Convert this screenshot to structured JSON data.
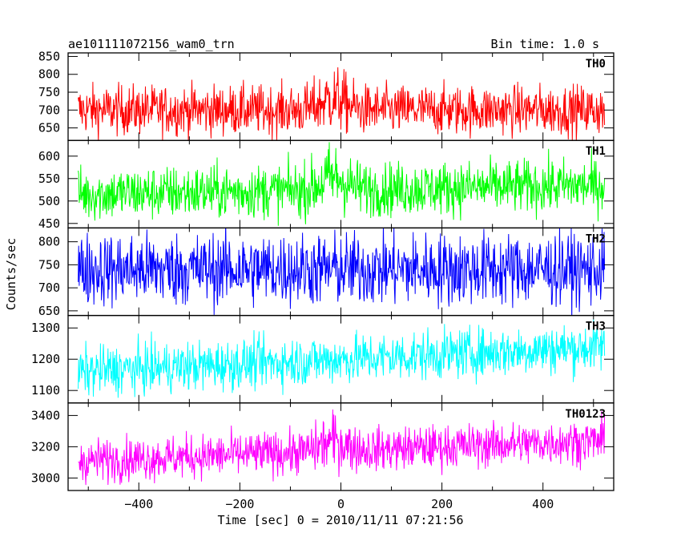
{
  "header": {
    "title": "ae101111072156_wam0_trn",
    "bin_time": "Bin time: 1.0 s"
  },
  "chart_data": {
    "type": "line",
    "xlabel": "Time [sec] 0 = 2010/11/11 07:21:56",
    "ylabel": "Counts/sec",
    "xlim": [
      -540,
      540
    ],
    "x_data_range": [
      -520,
      522
    ],
    "bin_seconds": 1.0,
    "x_ticks": [
      -400,
      -200,
      0,
      200,
      400
    ],
    "x_tick_labels": [
      "−400",
      "−200",
      "0",
      "200",
      "400"
    ],
    "panels": [
      {
        "label": "TH0",
        "color": "#ff0000",
        "ylim": [
          615,
          860
        ],
        "y_ticks": [
          650,
          700,
          750,
          800,
          850
        ],
        "y_tick_labels": [
          "650",
          "700",
          "750",
          "800",
          "850"
        ],
        "approx_mean": 700,
        "approx_noise_amplitude": 35,
        "burst_near_t0": true
      },
      {
        "label": "TH1",
        "color": "#00ff00",
        "ylim": [
          440,
          635
        ],
        "y_ticks": [
          450,
          500,
          550,
          600
        ],
        "y_tick_labels": [
          "450",
          "500",
          "550",
          "600"
        ],
        "approx_mean": 515,
        "approx_mean_end": 535,
        "approx_noise_amplitude": 30,
        "burst_near_t0": true
      },
      {
        "label": "TH2",
        "color": "#0000ff",
        "ylim": [
          640,
          830
        ],
        "y_ticks": [
          650,
          700,
          750,
          800
        ],
        "y_tick_labels": [
          "650",
          "700",
          "750",
          "800"
        ],
        "approx_mean": 740,
        "approx_noise_amplitude": 40,
        "burst_near_t0": false
      },
      {
        "label": "TH3",
        "color": "#00ffff",
        "ylim": [
          1060,
          1340
        ],
        "y_ticks": [
          1100,
          1200,
          1300
        ],
        "y_tick_labels": [
          "1100",
          "1200",
          "1300"
        ],
        "approx_mean": 1160,
        "approx_mean_end": 1240,
        "approx_noise_amplitude": 40,
        "burst_near_t0": false
      },
      {
        "label": "TH0123",
        "color": "#ff00ff",
        "ylim": [
          2920,
          3480
        ],
        "y_ticks": [
          3000,
          3200,
          3400
        ],
        "y_tick_labels": [
          "3000",
          "3200",
          "3400"
        ],
        "approx_mean": 3110,
        "approx_mean_end": 3240,
        "approx_noise_amplitude": 70,
        "burst_near_t0": true
      }
    ]
  }
}
